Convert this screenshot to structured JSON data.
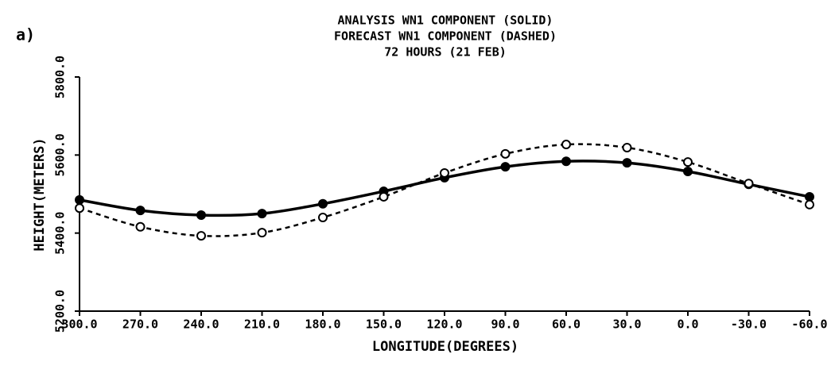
{
  "chart_data": {
    "type": "line",
    "panel_label": "a)",
    "title": [
      "ANALYSIS WN1 COMPONENT (SOLID)",
      "FORECAST WN1 COMPONENT (DASHED)",
      "72 HOURS (21 FEB)"
    ],
    "x_label": "LONGITUDE(DEGREES)",
    "y_label": "HEIGHT(METERS)",
    "x": [
      300,
      270,
      240,
      210,
      180,
      150,
      120,
      90,
      60,
      30,
      0,
      -30,
      -60
    ],
    "series": [
      {
        "color": "#000000",
        "dashed": false,
        "marker": "filled",
        "values": [
          5485,
          5458,
          5446,
          5450,
          5475,
          5507,
          5542,
          5570,
          5584,
          5580,
          5558,
          5525,
          5493
        ]
      },
      {
        "color": "#000000",
        "dashed": true,
        "marker": "open",
        "values": [
          5464,
          5416,
          5393,
          5401,
          5440,
          5493,
          5554,
          5603,
          5627,
          5619,
          5582,
          5527,
          5473
        ]
      }
    ],
    "xlim": [
      300,
      -60
    ],
    "xticks": [
      {
        "value": 300,
        "label": "300.0"
      },
      {
        "value": 270,
        "label": "270.0"
      },
      {
        "value": 240,
        "label": "240.0"
      },
      {
        "value": 210,
        "label": "210.0"
      },
      {
        "value": 180,
        "label": "180.0"
      },
      {
        "value": 150,
        "label": "150.0"
      },
      {
        "value": 120,
        "label": "120.0"
      },
      {
        "value": 90,
        "label": "90.0"
      },
      {
        "value": 60,
        "label": "60.0"
      },
      {
        "value": 30,
        "label": "30.0"
      },
      {
        "value": 0,
        "label": "0.0"
      },
      {
        "value": -30,
        "label": "-30.0"
      },
      {
        "value": -60,
        "label": "-60.0"
      }
    ],
    "ylim": [
      5200,
      5800
    ],
    "yticks": [
      {
        "value": 5200,
        "label": "5200.0"
      },
      {
        "value": 5400,
        "label": "5400.0"
      },
      {
        "value": 5600,
        "label": "5600.0"
      },
      {
        "value": 5800,
        "label": "5800.0"
      }
    ],
    "grid": false
  }
}
